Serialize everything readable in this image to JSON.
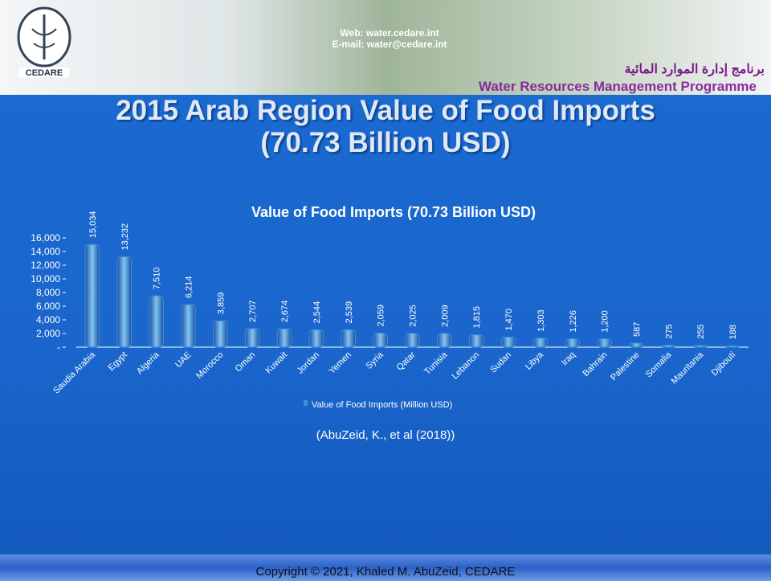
{
  "header": {
    "web": "Web: water.cedare.int",
    "email": "E-mail: water@cedare.int",
    "logo_text": "CEDARE",
    "programme_arabic": "برنامج إدارة الموارد المائية",
    "programme": "Water Resources Management Programme"
  },
  "slide_title": [
    "2015 Arab Region Value of Food Imports",
    "(70.73 Billion USD)"
  ],
  "chart_data": {
    "type": "bar",
    "title": "Value of Food Imports (70.73 Billion USD)",
    "categories": [
      "Saudia Arabia",
      "Egypt",
      "Algeria",
      "UAE",
      "Morocco",
      "Oman",
      "Kuwait",
      "Jordan",
      "Yemen",
      "Syria",
      "Qatar",
      "Tunisia",
      "Lebanon",
      "Sudan",
      "Libya",
      "Iraq",
      "Bahrain",
      "Palestine",
      "Somalia",
      "Mauritania",
      "Djibouti"
    ],
    "series": [
      {
        "name": "Value of Food Imports (Million USD)",
        "color": "#3a8fd8",
        "values": [
          15034,
          13232,
          7510,
          6214,
          3859,
          2707,
          2674,
          2544,
          2539,
          2059,
          2025,
          2009,
          1815,
          1470,
          1303,
          1226,
          1200,
          587,
          275,
          255,
          188
        ],
        "value_labels": [
          "15,034",
          "13,232",
          "7,510",
          "6,214",
          "3,859",
          "2,707",
          "2,674",
          "2,544",
          "2,539",
          "2,059",
          "2,025",
          "2,009",
          "1,815",
          "1,470",
          "1,303",
          "1,226",
          "1,200",
          "587",
          "275",
          "255",
          "188"
        ]
      }
    ],
    "ylim": [
      0,
      16000
    ],
    "yticks": [
      {
        "value": 0,
        "label": "-"
      },
      {
        "value": 2000,
        "label": "2,000"
      },
      {
        "value": 4000,
        "label": "4,000"
      },
      {
        "value": 6000,
        "label": "6,000"
      },
      {
        "value": 8000,
        "label": "8,000"
      },
      {
        "value": 10000,
        "label": "10,000"
      },
      {
        "value": 12000,
        "label": "12,000"
      },
      {
        "value": 14000,
        "label": "14,000"
      },
      {
        "value": 16000,
        "label": "16,000"
      }
    ],
    "legend": "bottom"
  },
  "citation": "(AbuZeid, K., et al (2018))",
  "footer": "Copyright © 2021, Khaled M. AbuZeid, CEDARE"
}
